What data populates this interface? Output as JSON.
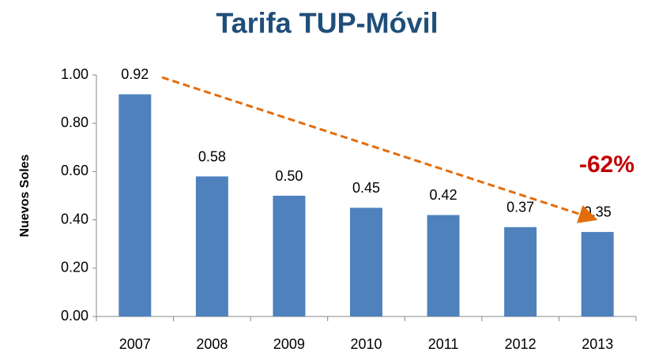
{
  "chart_data": {
    "type": "bar",
    "title": "Tarifa TUP-Móvil",
    "y_label": "Nuevos Soles",
    "categories": [
      "2007",
      "2008",
      "2009",
      "2010",
      "2011",
      "2012",
      "2013"
    ],
    "values": [
      0.92,
      0.58,
      0.5,
      0.45,
      0.42,
      0.37,
      0.35
    ],
    "value_labels": [
      "0.92",
      "0.58",
      "0.50",
      "0.45",
      "0.42",
      "0.37",
      "0.35"
    ],
    "color": "#4f81bd",
    "ylim": [
      0,
      1
    ],
    "yticks": [
      {
        "value": 0,
        "label": "0.00"
      },
      {
        "value": 0.2,
        "label": "0.20"
      },
      {
        "value": 0.4,
        "label": "0.40"
      },
      {
        "value": 0.6,
        "label": "0.60"
      },
      {
        "value": 0.8,
        "label": "0.80"
      },
      {
        "value": 1,
        "label": "1.00"
      }
    ],
    "grid": false,
    "annotation": "-62%"
  }
}
